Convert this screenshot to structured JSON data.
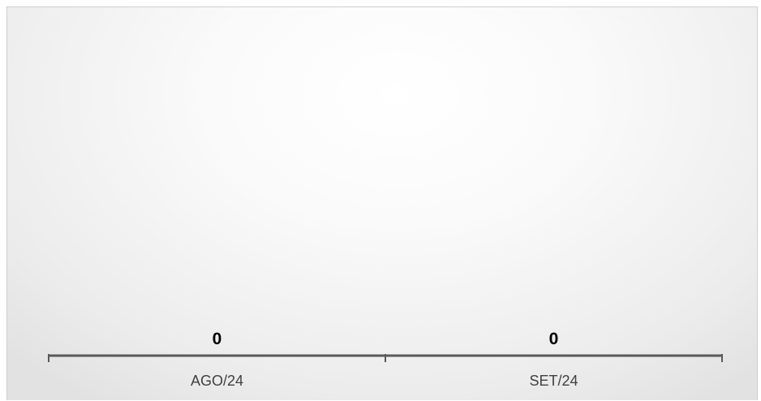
{
  "chart_data": {
    "type": "bar",
    "categories": [
      "AGO/24",
      "SET/24"
    ],
    "values": [
      0,
      0
    ],
    "title": "",
    "xlabel": "",
    "ylabel": "",
    "ylim": [
      0,
      1
    ],
    "grid": false,
    "legend": "none",
    "data_labels": true,
    "colors": {
      "axis": "#595959",
      "category_text": "#404040",
      "value_text": "#000000",
      "frame_border": "#cfcfcf"
    }
  }
}
